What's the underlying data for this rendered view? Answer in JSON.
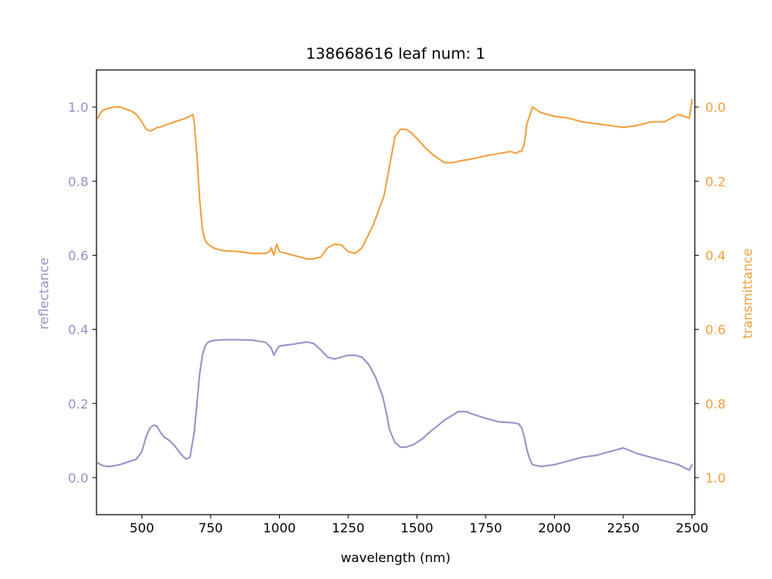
{
  "chart_data": {
    "type": "line",
    "title": "138668616 leaf num: 1",
    "xlabel": "wavelength (nm)",
    "ylabel_left": "reflectance",
    "ylabel_right": "transmittance",
    "xlim": [
      335,
      2510
    ],
    "ylim_left": [
      -0.1,
      1.1
    ],
    "ylim_right": [
      1.1,
      -0.1
    ],
    "y_right_inverted": true,
    "x_ticks": [
      "500",
      "750",
      "1000",
      "1250",
      "1500",
      "1750",
      "2000",
      "2250",
      "2500"
    ],
    "y_left_ticks": [
      "0.0",
      "0.2",
      "0.4",
      "0.6",
      "0.8",
      "1.0"
    ],
    "y_right_ticks": [
      "0.0",
      "0.2",
      "0.4",
      "0.6",
      "0.8",
      "1.0"
    ],
    "grid": false,
    "colors": {
      "reflectance": "#9990c8",
      "transmittance": "#f0a040",
      "axes": "#000000"
    },
    "series": [
      {
        "axis": "left",
        "x": [
          340,
          350,
          360,
          380,
          400,
          420,
          440,
          460,
          480,
          500,
          515,
          530,
          545,
          555,
          565,
          580,
          600,
          620,
          640,
          660,
          675,
          690,
          700,
          710,
          720,
          730,
          740,
          750,
          760,
          780,
          800,
          850,
          900,
          950,
          970,
          980,
          990,
          1000,
          1050,
          1100,
          1125,
          1150,
          1175,
          1200,
          1225,
          1250,
          1275,
          1300,
          1325,
          1350,
          1375,
          1390,
          1400,
          1420,
          1440,
          1460,
          1490,
          1520,
          1550,
          1600,
          1650,
          1680,
          1700,
          1750,
          1800,
          1850,
          1870,
          1880,
          1890,
          1900,
          1910,
          1920,
          1950,
          2000,
          2050,
          2100,
          2150,
          2200,
          2250,
          2300,
          2350,
          2400,
          2450,
          2490,
          2500
        ],
        "values": [
          0.04,
          0.035,
          0.032,
          0.03,
          0.032,
          0.035,
          0.04,
          0.045,
          0.05,
          0.07,
          0.11,
          0.135,
          0.142,
          0.138,
          0.125,
          0.11,
          0.1,
          0.085,
          0.065,
          0.05,
          0.055,
          0.12,
          0.2,
          0.28,
          0.33,
          0.355,
          0.365,
          0.368,
          0.37,
          0.371,
          0.372,
          0.372,
          0.371,
          0.365,
          0.35,
          0.33,
          0.345,
          0.355,
          0.36,
          0.366,
          0.362,
          0.345,
          0.325,
          0.32,
          0.325,
          0.33,
          0.33,
          0.325,
          0.305,
          0.27,
          0.22,
          0.17,
          0.13,
          0.095,
          0.082,
          0.082,
          0.09,
          0.105,
          0.125,
          0.155,
          0.178,
          0.178,
          0.172,
          0.16,
          0.15,
          0.148,
          0.145,
          0.135,
          0.11,
          0.075,
          0.05,
          0.035,
          0.03,
          0.035,
          0.045,
          0.055,
          0.06,
          0.07,
          0.08,
          0.065,
          0.055,
          0.045,
          0.035,
          0.02,
          0.035
        ]
      },
      {
        "axis": "right",
        "x": [
          340,
          350,
          360,
          380,
          400,
          420,
          440,
          460,
          480,
          500,
          515,
          530,
          545,
          555,
          565,
          580,
          600,
          620,
          640,
          660,
          675,
          685,
          690,
          700,
          710,
          720,
          730,
          740,
          750,
          760,
          780,
          800,
          850,
          900,
          950,
          965,
          970,
          980,
          990,
          1000,
          1050,
          1100,
          1120,
          1150,
          1175,
          1200,
          1225,
          1250,
          1275,
          1300,
          1320,
          1340,
          1360,
          1380,
          1400,
          1420,
          1440,
          1460,
          1480,
          1500,
          1530,
          1560,
          1600,
          1630,
          1660,
          1700,
          1750,
          1800,
          1840,
          1860,
          1870,
          1880,
          1890,
          1900,
          1920,
          1950,
          2000,
          2050,
          2100,
          2150,
          2200,
          2250,
          2300,
          2350,
          2400,
          2450,
          2490,
          2500
        ],
        "values": [
          0.03,
          0.015,
          0.008,
          0.003,
          0.0,
          0.0,
          0.005,
          0.01,
          0.02,
          0.04,
          0.06,
          0.065,
          0.06,
          0.055,
          0.055,
          0.05,
          0.045,
          0.04,
          0.035,
          0.03,
          0.025,
          0.02,
          0.04,
          0.13,
          0.25,
          0.33,
          0.36,
          0.37,
          0.375,
          0.38,
          0.385,
          0.388,
          0.39,
          0.395,
          0.395,
          0.39,
          0.38,
          0.4,
          0.37,
          0.39,
          0.4,
          0.41,
          0.41,
          0.405,
          0.38,
          0.37,
          0.372,
          0.39,
          0.395,
          0.38,
          0.35,
          0.32,
          0.28,
          0.24,
          0.16,
          0.08,
          0.06,
          0.06,
          0.07,
          0.085,
          0.11,
          0.13,
          0.15,
          0.15,
          0.145,
          0.14,
          0.132,
          0.125,
          0.12,
          0.125,
          0.12,
          0.12,
          0.1,
          0.045,
          0.0,
          0.015,
          0.025,
          0.03,
          0.04,
          0.045,
          0.05,
          0.055,
          0.05,
          0.04,
          0.04,
          0.02,
          0.03,
          -0.02
        ]
      }
    ]
  }
}
